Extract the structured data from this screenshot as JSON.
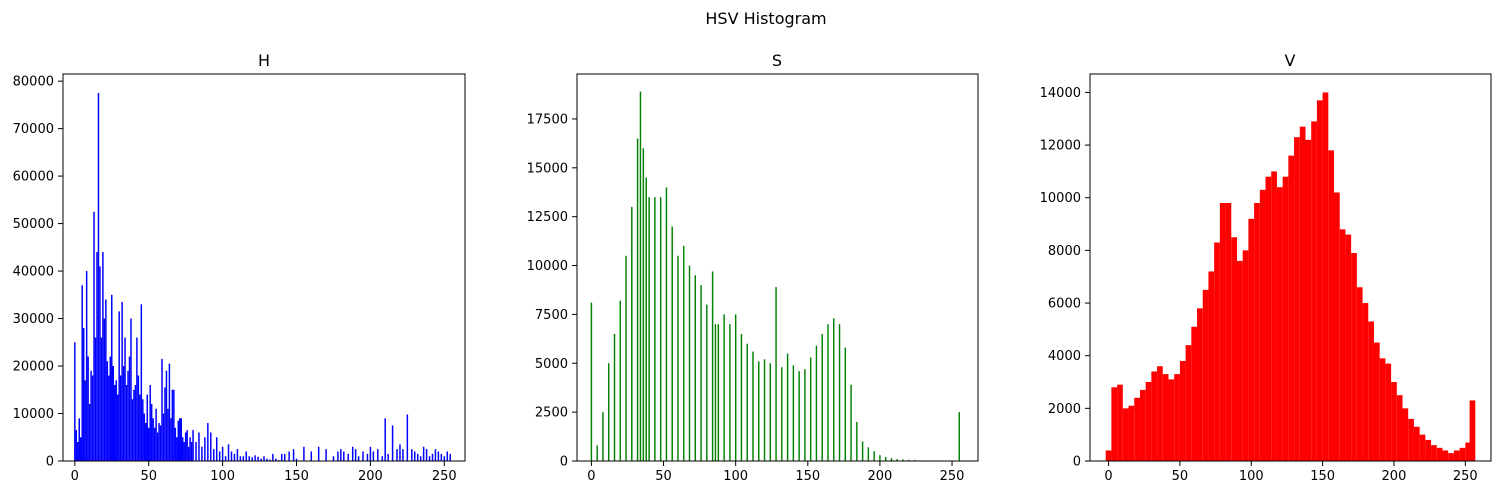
{
  "figure": {
    "suptitle": "HSV Histogram"
  },
  "chart_data": [
    {
      "type": "bar",
      "title": "H",
      "color": "#0000ff",
      "xlabel": "",
      "ylabel": "",
      "xlim": [
        -8,
        264
      ],
      "ylim": [
        0,
        81500
      ],
      "xticks": [
        0,
        50,
        100,
        150,
        200,
        250
      ],
      "yticks": [
        0,
        10000,
        20000,
        30000,
        40000,
        50000,
        60000,
        70000,
        80000
      ],
      "bar_width": 1,
      "x": [
        0,
        1,
        2,
        3,
        4,
        5,
        6,
        7,
        8,
        9,
        10,
        11,
        12,
        13,
        14,
        15,
        16,
        17,
        18,
        19,
        20,
        21,
        22,
        23,
        24,
        25,
        26,
        27,
        28,
        29,
        30,
        31,
        32,
        33,
        34,
        35,
        36,
        37,
        38,
        39,
        40,
        41,
        42,
        43,
        44,
        45,
        46,
        47,
        48,
        49,
        50,
        51,
        52,
        53,
        54,
        55,
        56,
        57,
        58,
        59,
        60,
        61,
        62,
        63,
        64,
        65,
        66,
        67,
        68,
        69,
        70,
        71,
        72,
        73,
        74,
        75,
        76,
        77,
        78,
        79,
        80,
        82,
        84,
        86,
        88,
        90,
        92,
        94,
        96,
        98,
        100,
        102,
        104,
        106,
        108,
        110,
        112,
        114,
        116,
        118,
        120,
        122,
        124,
        126,
        128,
        130,
        132,
        134,
        136,
        138,
        140,
        142,
        145,
        148,
        150,
        155,
        160,
        165,
        170,
        175,
        178,
        180,
        182,
        185,
        188,
        190,
        192,
        195,
        198,
        200,
        202,
        205,
        208,
        210,
        212,
        215,
        218,
        220,
        222,
        225,
        228,
        230,
        232,
        234,
        236,
        238,
        240,
        242,
        244,
        246,
        248,
        250,
        252,
        254
      ],
      "values": [
        25000,
        6500,
        4000,
        9000,
        5000,
        37000,
        28000,
        17000,
        40000,
        22000,
        12000,
        19000,
        18000,
        52500,
        26000,
        44000,
        77500,
        41000,
        26000,
        44000,
        30000,
        34000,
        21000,
        18000,
        22000,
        35000,
        20000,
        16000,
        17000,
        14000,
        31500,
        18000,
        33500,
        20000,
        26000,
        16000,
        19000,
        22000,
        30000,
        13000,
        15000,
        16000,
        26000,
        18000,
        14000,
        33000,
        13000,
        10000,
        8000,
        14000,
        7000,
        16000,
        12000,
        9000,
        7000,
        11000,
        6000,
        8000,
        7500,
        21500,
        10000,
        15500,
        19000,
        11000,
        20500,
        9000,
        15000,
        15000,
        7000,
        5000,
        8500,
        9000,
        9000,
        5000,
        4000,
        6000,
        6500,
        3000,
        5000,
        4000,
        6500,
        4000,
        6000,
        3000,
        5000,
        8000,
        6000,
        2500,
        5000,
        2000,
        3000,
        1000,
        3500,
        2000,
        1500,
        2500,
        1000,
        1000,
        2000,
        1000,
        800,
        1200,
        900,
        500,
        1000,
        500,
        300,
        1500,
        500,
        200,
        1500,
        1500,
        2000,
        2500,
        500,
        3000,
        2000,
        3000,
        2500,
        1000,
        2000,
        2500,
        2000,
        1500,
        3000,
        2500,
        1000,
        2000,
        1500,
        3000,
        2000,
        2500,
        1000,
        9000,
        1500,
        7500,
        2500,
        3500,
        2500,
        9800,
        2500,
        2000,
        1500,
        1000,
        3000,
        2500,
        1000,
        1500,
        2500,
        2000,
        1500,
        1000,
        2000,
        1500
      ]
    },
    {
      "type": "bar",
      "title": "S",
      "color": "#008000",
      "xlabel": "",
      "ylabel": "",
      "xlim": [
        -10,
        268
      ],
      "ylim": [
        0,
        19800
      ],
      "xticks": [
        0,
        50,
        100,
        150,
        200,
        250
      ],
      "yticks": [
        0,
        2500,
        5000,
        7500,
        10000,
        12500,
        15000,
        17500
      ],
      "bar_width": 1,
      "x": [
        0,
        4,
        8,
        12,
        16,
        20,
        24,
        28,
        32,
        34,
        36,
        38,
        40,
        44,
        48,
        52,
        56,
        60,
        64,
        68,
        72,
        76,
        80,
        84,
        86,
        88,
        92,
        96,
        100,
        104,
        108,
        112,
        116,
        120,
        124,
        128,
        132,
        136,
        140,
        144,
        148,
        152,
        156,
        160,
        164,
        168,
        172,
        176,
        180,
        184,
        188,
        192,
        196,
        200,
        204,
        208,
        212,
        216,
        220,
        224,
        228,
        232,
        236,
        240,
        244,
        248,
        252,
        255
      ],
      "values": [
        8100,
        800,
        2500,
        5000,
        6500,
        8200,
        10500,
        13000,
        16500,
        18900,
        16000,
        14500,
        13500,
        13500,
        13500,
        14000,
        12000,
        10500,
        11000,
        10000,
        9500,
        9000,
        8000,
        9700,
        7000,
        7000,
        7500,
        7000,
        7500,
        6500,
        6000,
        5600,
        5100,
        5200,
        5000,
        8900,
        4800,
        5500,
        4900,
        4600,
        4700,
        5300,
        5900,
        6500,
        7000,
        7300,
        7000,
        5800,
        3900,
        2000,
        1000,
        700,
        500,
        300,
        200,
        150,
        100,
        80,
        60,
        50,
        30,
        30,
        20,
        20,
        10,
        10,
        10,
        2500
      ]
    },
    {
      "type": "bar",
      "title": "V",
      "color": "#ff0000",
      "xlabel": "",
      "ylabel": "",
      "xlim": [
        -13,
        268
      ],
      "ylim": [
        0,
        14700
      ],
      "xticks": [
        0,
        50,
        100,
        150,
        200,
        250
      ],
      "yticks": [
        0,
        2000,
        4000,
        6000,
        8000,
        10000,
        12000,
        14000
      ],
      "bar_width": 4,
      "x": [
        0,
        4,
        8,
        12,
        16,
        20,
        24,
        28,
        32,
        36,
        40,
        44,
        48,
        52,
        56,
        60,
        64,
        68,
        72,
        76,
        80,
        84,
        88,
        92,
        96,
        100,
        104,
        108,
        112,
        116,
        120,
        124,
        128,
        132,
        136,
        140,
        144,
        148,
        152,
        156,
        160,
        164,
        168,
        172,
        176,
        180,
        184,
        188,
        192,
        196,
        200,
        204,
        208,
        212,
        216,
        220,
        224,
        228,
        232,
        236,
        240,
        244,
        248,
        252,
        255
      ],
      "values": [
        400,
        2800,
        2900,
        2000,
        2100,
        2400,
        2700,
        3000,
        3400,
        3600,
        3300,
        3100,
        3300,
        3800,
        4400,
        5100,
        5800,
        6500,
        7200,
        8300,
        9800,
        9800,
        8500,
        7600,
        8000,
        9200,
        9800,
        10300,
        10800,
        11000,
        10400,
        10800,
        11600,
        12300,
        12700,
        12200,
        12900,
        13700,
        14000,
        11800,
        10200,
        8800,
        8600,
        7900,
        6600,
        6000,
        5300,
        4500,
        3900,
        3700,
        3000,
        2500,
        2000,
        1600,
        1300,
        1000,
        800,
        600,
        500,
        400,
        300,
        400,
        500,
        700,
        2300
      ]
    }
  ]
}
